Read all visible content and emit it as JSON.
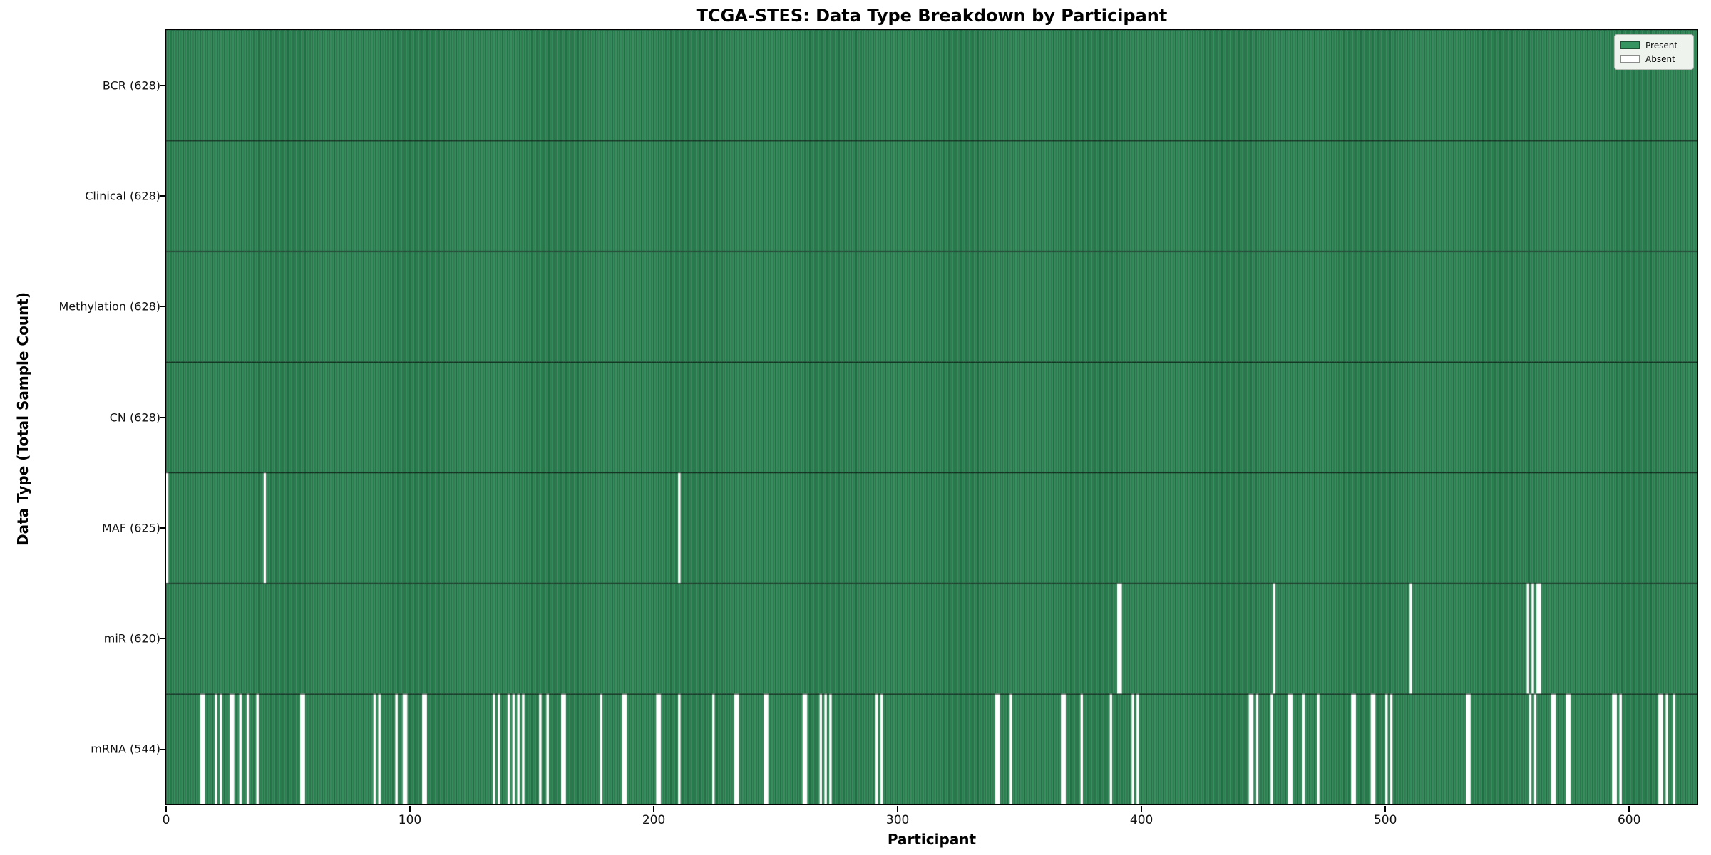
{
  "page": {
    "background": "#ffffff"
  },
  "chart_data": {
    "type": "heatmap",
    "title": "TCGA-STES: Data Type Breakdown by Participant",
    "xlabel": "Participant",
    "ylabel": "Data Type (Total Sample Count)",
    "x_ticks": [
      0,
      100,
      200,
      300,
      400,
      500,
      600
    ],
    "x_range": [
      0,
      628
    ],
    "n_participants": 628,
    "grid": false,
    "legend": {
      "position": "upper-right",
      "entries": [
        {
          "label": "Present",
          "color": "#35945f"
        },
        {
          "label": "Absent",
          "color": "#ffffff"
        }
      ]
    },
    "colors": {
      "present": "#35945f",
      "absent": "#ffffff",
      "cell_edge": "rgba(8,34,21,0.55)",
      "row_border": "rgba(0,0,0,0.75)"
    },
    "rows": [
      {
        "label": "BCR (628)",
        "name": "BCR",
        "count": 628,
        "absent": []
      },
      {
        "label": "Clinical (628)",
        "name": "Clinical",
        "count": 628,
        "absent": []
      },
      {
        "label": "Methylation (628)",
        "name": "Methylation",
        "count": 628,
        "absent": []
      },
      {
        "label": "CN (628)",
        "name": "CN",
        "count": 628,
        "absent": []
      },
      {
        "label": "MAF (625)",
        "name": "MAF",
        "count": 625,
        "absent": [
          0,
          40,
          210
        ]
      },
      {
        "label": "miR (620)",
        "name": "miR",
        "count": 620,
        "absent": [
          390,
          391,
          454,
          510,
          558,
          560,
          562,
          563
        ]
      },
      {
        "label": "mRNA (544)",
        "name": "mRNA",
        "count": 544,
        "absent": [
          14,
          15,
          20,
          22,
          26,
          27,
          30,
          33,
          37,
          55,
          56,
          85,
          87,
          94,
          97,
          98,
          105,
          106,
          134,
          136,
          140,
          142,
          144,
          146,
          153,
          156,
          162,
          163,
          178,
          187,
          188,
          201,
          202,
          210,
          224,
          233,
          234,
          245,
          246,
          261,
          262,
          268,
          270,
          272,
          291,
          293,
          340,
          341,
          346,
          367,
          368,
          375,
          387,
          396,
          398,
          444,
          445,
          447,
          453,
          460,
          461,
          466,
          472,
          486,
          487,
          494,
          495,
          500,
          502,
          533,
          534,
          559,
          561,
          568,
          569,
          574,
          575,
          593,
          594,
          596,
          612,
          613,
          615,
          618
        ]
      }
    ]
  }
}
